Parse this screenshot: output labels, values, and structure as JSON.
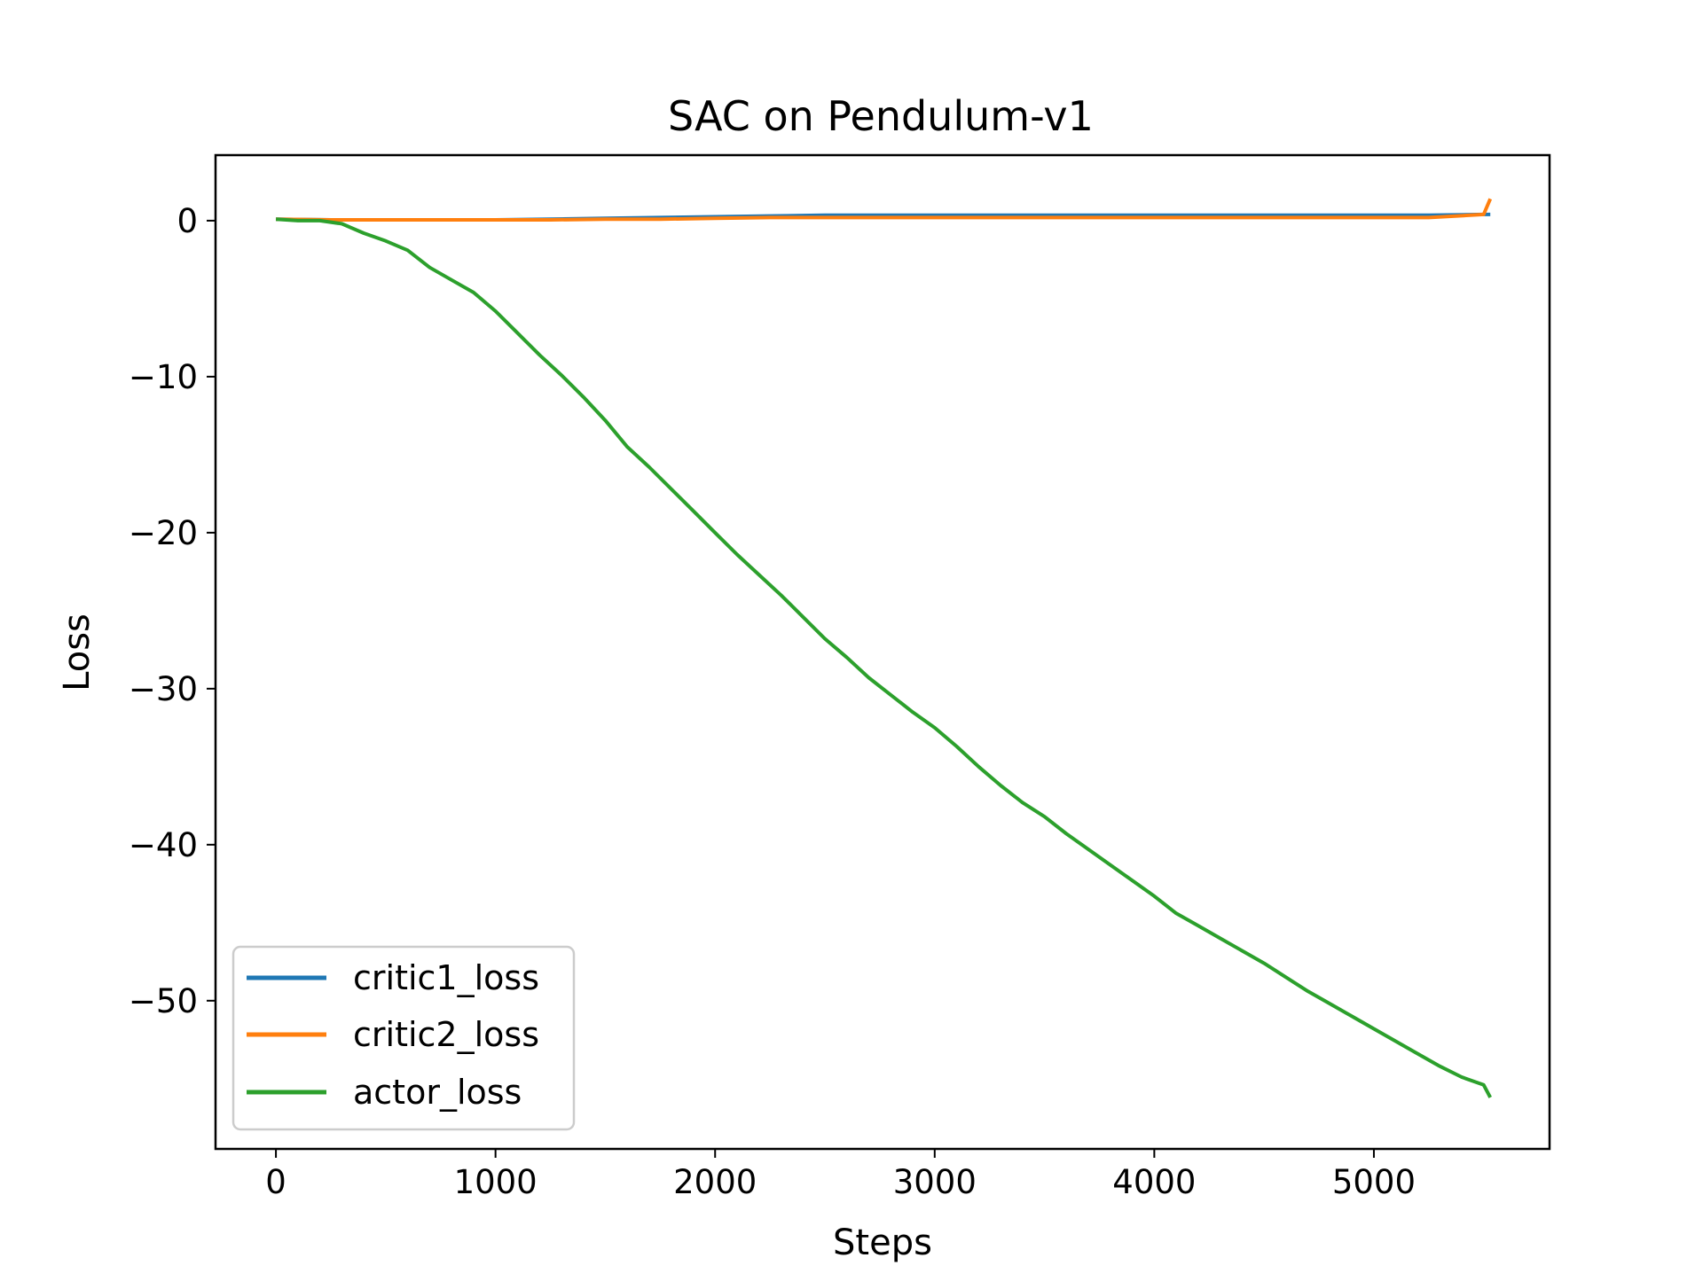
{
  "chart_data": {
    "type": "line",
    "title": "SAC on Pendulum-v1",
    "xlabel": "Steps",
    "ylabel": "Loss",
    "xlim": [
      -275,
      5800
    ],
    "ylim": [
      -59.5,
      4.2
    ],
    "xticks": [
      0,
      1000,
      2000,
      3000,
      4000,
      5000
    ],
    "xtick_labels": [
      "0",
      "1000",
      "2000",
      "3000",
      "4000",
      "5000"
    ],
    "yticks": [
      0,
      -10,
      -20,
      -30,
      -40,
      -50
    ],
    "ytick_labels": [
      "0",
      "−10",
      "−20",
      "−30",
      "−40",
      "−50"
    ],
    "grid": false,
    "legend_position": "lower-left",
    "colors": {
      "critic1_loss": "#1f77b4",
      "critic2_loss": "#ff7f0e",
      "actor_loss": "#2ca02c"
    },
    "series": [
      {
        "name": "critic1_loss",
        "color": "#1f77b4",
        "x": [
          0,
          250,
          500,
          750,
          1000,
          1250,
          1500,
          1750,
          2000,
          2250,
          2500,
          2750,
          3000,
          3250,
          3500,
          3750,
          4000,
          4250,
          4500,
          4750,
          5000,
          5250,
          5500,
          5530
        ],
        "y": [
          0.1,
          0.05,
          0.05,
          0.05,
          0.05,
          0.1,
          0.15,
          0.2,
          0.25,
          0.3,
          0.35,
          0.35,
          0.35,
          0.35,
          0.35,
          0.35,
          0.35,
          0.35,
          0.35,
          0.35,
          0.35,
          0.35,
          0.4,
          0.4
        ]
      },
      {
        "name": "critic2_loss",
        "color": "#ff7f0e",
        "x": [
          0,
          250,
          500,
          750,
          1000,
          1250,
          1500,
          1750,
          2000,
          2250,
          2500,
          2750,
          3000,
          3250,
          3500,
          3750,
          4000,
          4250,
          4500,
          4750,
          5000,
          5250,
          5500,
          5530
        ],
        "y": [
          0.1,
          0.05,
          0.05,
          0.05,
          0.05,
          0.05,
          0.1,
          0.1,
          0.15,
          0.2,
          0.2,
          0.2,
          0.2,
          0.2,
          0.2,
          0.2,
          0.2,
          0.2,
          0.2,
          0.2,
          0.2,
          0.2,
          0.4,
          1.4
        ]
      },
      {
        "name": "actor_loss",
        "color": "#2ca02c",
        "x": [
          0,
          100,
          200,
          300,
          400,
          500,
          600,
          700,
          800,
          900,
          1000,
          1100,
          1200,
          1300,
          1400,
          1500,
          1600,
          1700,
          1800,
          1900,
          2000,
          2100,
          2200,
          2300,
          2400,
          2500,
          2600,
          2700,
          2800,
          2900,
          3000,
          3100,
          3200,
          3300,
          3400,
          3500,
          3600,
          3700,
          3800,
          3900,
          4000,
          4100,
          4200,
          4300,
          4400,
          4500,
          4600,
          4700,
          4800,
          4900,
          5000,
          5100,
          5200,
          5300,
          5400,
          5500,
          5530
        ],
        "y": [
          0.1,
          0.0,
          0.0,
          -0.2,
          -0.8,
          -1.3,
          -1.9,
          -3.0,
          -3.8,
          -4.6,
          -5.8,
          -7.2,
          -8.6,
          -9.9,
          -11.3,
          -12.8,
          -14.5,
          -15.8,
          -17.2,
          -18.6,
          -20.0,
          -21.4,
          -22.7,
          -24.0,
          -25.4,
          -26.8,
          -28.0,
          -29.3,
          -30.4,
          -31.5,
          -32.5,
          -33.7,
          -35.0,
          -36.2,
          -37.3,
          -38.2,
          -39.3,
          -40.3,
          -41.3,
          -42.3,
          -43.3,
          -44.4,
          -45.2,
          -46.0,
          -46.8,
          -47.6,
          -48.5,
          -49.4,
          -50.2,
          -51.0,
          -51.8,
          -52.6,
          -53.4,
          -54.2,
          -54.9,
          -55.4,
          -56.2
        ]
      }
    ]
  }
}
